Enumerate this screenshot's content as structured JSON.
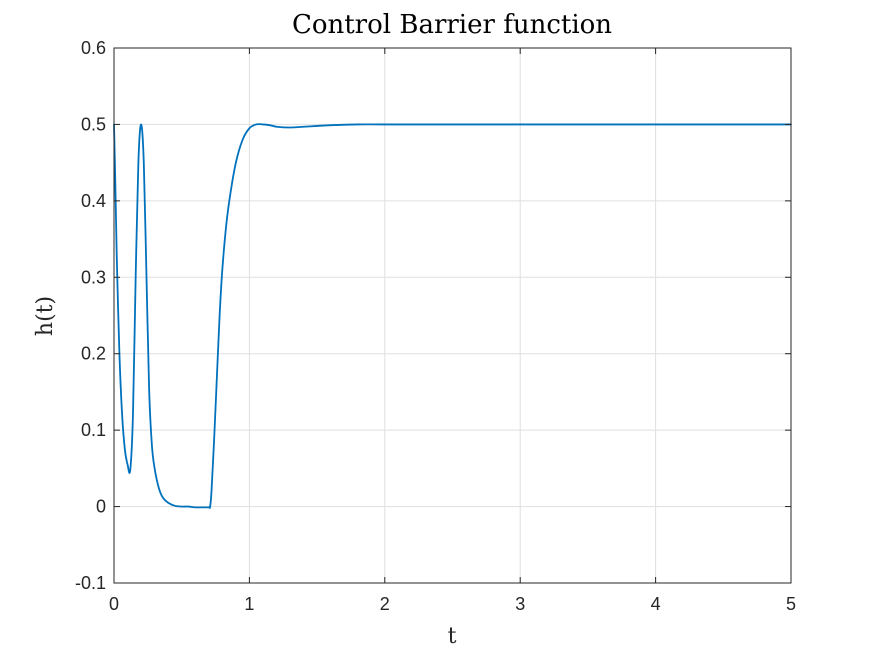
{
  "chart_data": {
    "type": "line",
    "title": "Control Barrier function",
    "xlabel": "t",
    "ylabel": "h(t)",
    "xlim": [
      0,
      5
    ],
    "ylim": [
      -0.1,
      0.6
    ],
    "x_ticks": [
      0,
      1,
      2,
      3,
      4,
      5
    ],
    "x_tick_labels": [
      "0",
      "1",
      "2",
      "3",
      "4",
      "5"
    ],
    "y_ticks": [
      -0.1,
      0,
      0.1,
      0.2,
      0.3,
      0.4,
      0.5,
      0.6
    ],
    "y_tick_labels": [
      "-0.1",
      "0",
      "0.1",
      "0.2",
      "0.3",
      "0.4",
      "0.5",
      "0.6"
    ],
    "grid": true,
    "series": [
      {
        "color": "#0072bd",
        "x": [
          0,
          0.01,
          0.02,
          0.04,
          0.06,
          0.08,
          0.1,
          0.12,
          0.14,
          0.16,
          0.18,
          0.2,
          0.22,
          0.24,
          0.26,
          0.28,
          0.3,
          0.33,
          0.36,
          0.4,
          0.45,
          0.5,
          0.55,
          0.6,
          0.65,
          0.7,
          0.71,
          0.72,
          0.74,
          0.76,
          0.78,
          0.8,
          0.83,
          0.86,
          0.9,
          0.95,
          1.0,
          1.05,
          1.1,
          1.15,
          1.2,
          1.3,
          1.4,
          1.5,
          1.6,
          1.8,
          2.0,
          2.5,
          3.0,
          3.5,
          4.0,
          4.5,
          5.0
        ],
        "y": [
          0.5,
          0.42,
          0.33,
          0.2,
          0.12,
          0.075,
          0.055,
          0.048,
          0.12,
          0.3,
          0.45,
          0.5,
          0.45,
          0.3,
          0.15,
          0.08,
          0.05,
          0.025,
          0.012,
          0.005,
          0.001,
          0.0,
          0.0,
          -0.001,
          -0.001,
          -0.001,
          0.0,
          0.02,
          0.09,
          0.17,
          0.25,
          0.31,
          0.37,
          0.41,
          0.45,
          0.48,
          0.495,
          0.5,
          0.5,
          0.499,
          0.497,
          0.496,
          0.497,
          0.498,
          0.499,
          0.5,
          0.5,
          0.5,
          0.5,
          0.5,
          0.5,
          0.5,
          0.5
        ]
      }
    ]
  }
}
